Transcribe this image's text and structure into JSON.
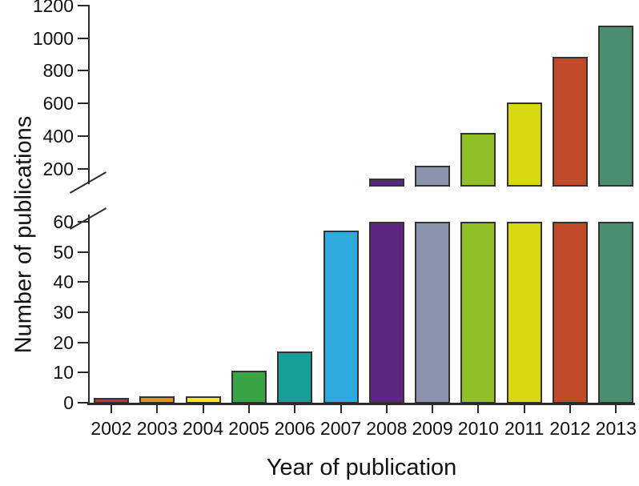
{
  "chart_data": {
    "type": "bar",
    "title": "",
    "xlabel": "Year of publication",
    "ylabel": "Number of publications",
    "categories": [
      "2002",
      "2003",
      "2004",
      "2005",
      "2006",
      "2007",
      "2008",
      "2009",
      "2010",
      "2011",
      "2012",
      "2013"
    ],
    "values": [
      1.5,
      2,
      2,
      10.5,
      17,
      57,
      140,
      220,
      420,
      605,
      885,
      1075
    ],
    "bar_colors": [
      "#b9392f",
      "#e89217",
      "#f7e71c",
      "#39a345",
      "#169e97",
      "#2fa8dd",
      "#5c2483",
      "#8b94ac",
      "#8fc026",
      "#d8d813",
      "#c04a29",
      "#4a8e6e"
    ],
    "bar_outline_color": "#333333",
    "axis_color": "#2a2a2a",
    "text_color": "#111111",
    "grid": "off",
    "legend": "none",
    "axis_break": {
      "lower_panel_max": 60,
      "upper_panel_min": 90,
      "broken_between": [
        60,
        150
      ]
    },
    "upper_axis": {
      "ticks": [
        200,
        400,
        600,
        800,
        1000,
        1200
      ],
      "range": [
        90,
        1200
      ]
    },
    "lower_axis": {
      "ticks": [
        0,
        10,
        20,
        30,
        40,
        50,
        60
      ],
      "range": [
        0,
        60
      ]
    }
  }
}
